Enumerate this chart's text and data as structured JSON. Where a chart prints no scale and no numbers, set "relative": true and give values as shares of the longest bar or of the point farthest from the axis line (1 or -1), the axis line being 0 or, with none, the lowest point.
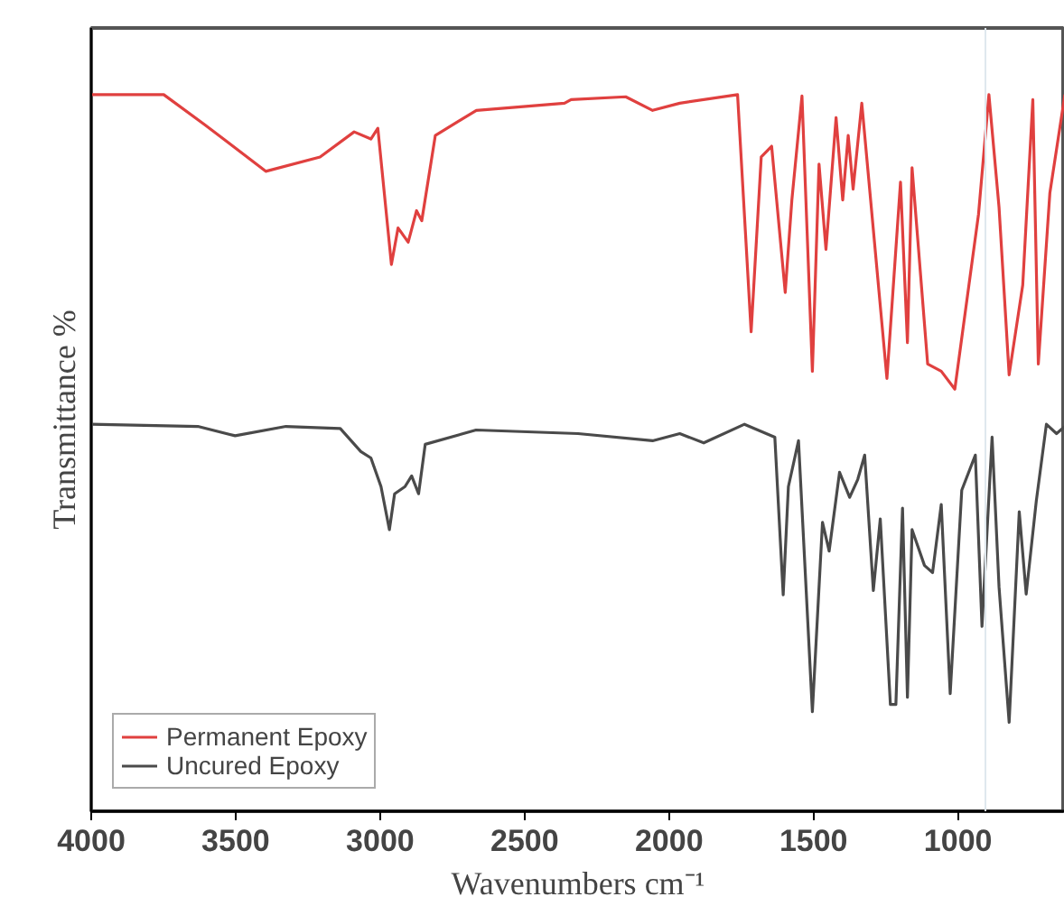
{
  "chart_data": {
    "type": "line",
    "relative": true,
    "xlabel": "Wavenumbers cm⁻¹",
    "ylabel": "Transmittance %",
    "xlim": [
      4000,
      630
    ],
    "xticks": [
      4000,
      3500,
      3000,
      2500,
      2000,
      1500,
      1000
    ],
    "tick_labels": "x",
    "grid": false,
    "legend": "bottom left",
    "line_style": "solid",
    "marker": "none",
    "ref_lines": [
      {
        "axis": "x",
        "value": 905,
        "color": "#dfe8ee"
      }
    ],
    "series": [
      {
        "name": "Permanent Epoxy",
        "color": "#e0403f",
        "x": [
          4000,
          3749,
          3607,
          3396,
          3208,
          3090,
          3032,
          3008,
          2961,
          2938,
          2903,
          2874,
          2856,
          2809,
          2667,
          2362,
          2339,
          2150,
          2057,
          1963,
          1763,
          1716,
          1681,
          1645,
          1598,
          1575,
          1540,
          1504,
          1481,
          1457,
          1422,
          1399,
          1380,
          1363,
          1333,
          1246,
          1199,
          1175,
          1159,
          1105,
          1058,
          1011,
          929,
          893,
          858,
          823,
          776,
          741,
          722,
          682,
          630
        ],
        "values": [
          1.0,
          1.0,
          0.958,
          0.893,
          0.913,
          0.948,
          0.938,
          0.953,
          0.763,
          0.814,
          0.794,
          0.838,
          0.824,
          0.943,
          0.978,
          0.988,
          0.993,
          0.997,
          0.978,
          0.988,
          1.0,
          0.669,
          0.913,
          0.928,
          0.724,
          0.853,
          0.998,
          0.614,
          0.903,
          0.784,
          0.968,
          0.853,
          0.943,
          0.868,
          0.988,
          0.604,
          0.878,
          0.654,
          0.898,
          0.624,
          0.614,
          0.589,
          0.833,
          1.0,
          0.843,
          0.609,
          0.734,
          0.993,
          0.624,
          0.863,
          1.0
        ]
      },
      {
        "name": "Uncured Epoxy",
        "color": "#4a4a4a",
        "x": [
          4000,
          3631,
          3502,
          3326,
          3138,
          3067,
          3032,
          2997,
          2968,
          2950,
          2914,
          2891,
          2867,
          2844,
          2668,
          2315,
          2057,
          1963,
          1880,
          1739,
          1634,
          1605,
          1587,
          1552,
          1504,
          1469,
          1446,
          1410,
          1375,
          1347,
          1323,
          1293,
          1269,
          1234,
          1215,
          1192,
          1175,
          1159,
          1116,
          1088,
          1058,
          1027,
          987,
          940,
          917,
          882,
          858,
          823,
          788,
          764,
          729,
          694,
          659,
          630
        ],
        "values": [
          0.54,
          0.537,
          0.524,
          0.537,
          0.534,
          0.502,
          0.493,
          0.453,
          0.393,
          0.443,
          0.453,
          0.468,
          0.443,
          0.512,
          0.532,
          0.527,
          0.517,
          0.527,
          0.514,
          0.54,
          0.522,
          0.302,
          0.453,
          0.517,
          0.139,
          0.403,
          0.363,
          0.473,
          0.438,
          0.463,
          0.497,
          0.308,
          0.408,
          0.149,
          0.149,
          0.423,
          0.159,
          0.393,
          0.343,
          0.333,
          0.428,
          0.164,
          0.448,
          0.497,
          0.258,
          0.522,
          0.313,
          0.124,
          0.418,
          0.303,
          0.433,
          0.54,
          0.527,
          0.537
        ]
      }
    ]
  }
}
